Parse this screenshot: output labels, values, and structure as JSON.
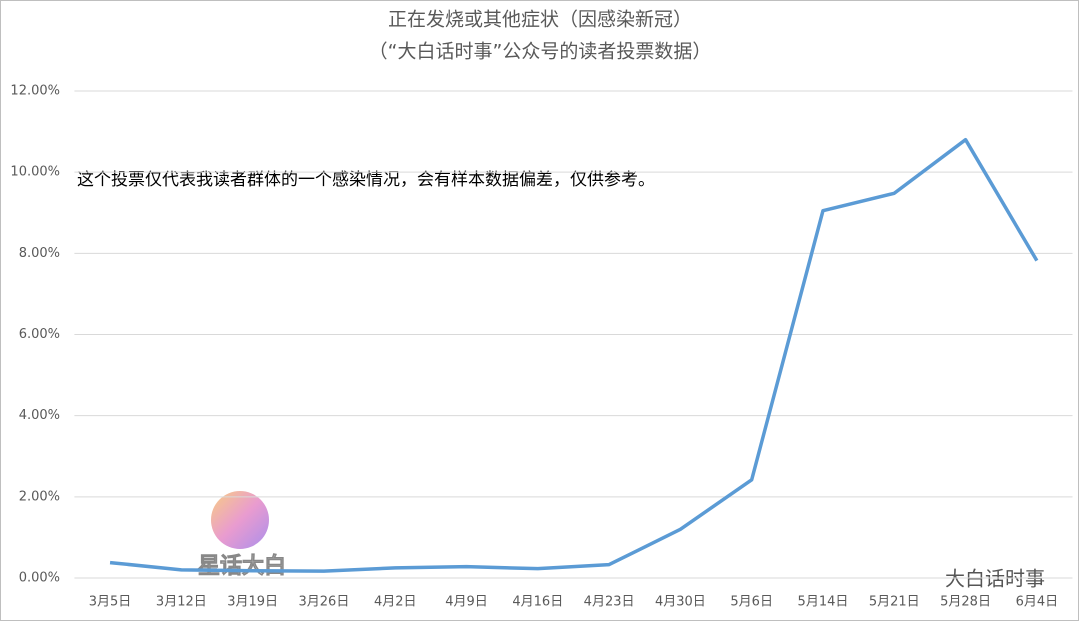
{
  "chart_data": {
    "type": "line",
    "title": "正在发烧或其他症状（因感染新冠）",
    "subtitle": "（“大白话时事”公众号的读者投票数据）",
    "annotation": "这个投票仅代表我读者群体的一个感染情况，会有样本数据偏差，仅供参考。",
    "watermark": "星话大白",
    "source": "大白话时事",
    "categories": [
      "3月5日",
      "3月12日",
      "3月19日",
      "3月26日",
      "4月2日",
      "4月9日",
      "4月16日",
      "4月23日",
      "4月30日",
      "5月6日",
      "5月14日",
      "5月21日",
      "5月28日",
      "6月4日"
    ],
    "series": [
      {
        "name": "正在发烧或其他症状",
        "color": "#5b9bd5",
        "values": [
          0.38,
          0.2,
          0.18,
          0.17,
          0.25,
          0.28,
          0.23,
          0.33,
          1.2,
          2.42,
          9.05,
          9.48,
          10.8,
          7.82
        ]
      }
    ],
    "ylim": [
      0,
      12
    ],
    "yticks": [
      {
        "value": 0,
        "label": "0.00%"
      },
      {
        "value": 2,
        "label": "2.00%"
      },
      {
        "value": 4,
        "label": "4.00%"
      },
      {
        "value": 6,
        "label": "6.00%"
      },
      {
        "value": 8,
        "label": "8.00%"
      },
      {
        "value": 10,
        "label": "10.00%"
      },
      {
        "value": 12,
        "label": "12.00%"
      }
    ],
    "grid": true
  }
}
